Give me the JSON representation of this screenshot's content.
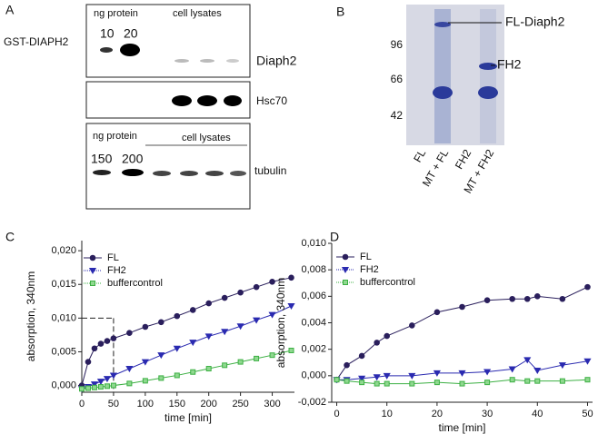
{
  "panel_labels": [
    "A",
    "B",
    "C",
    "D"
  ],
  "blot": {
    "row_label": "GST-DIAPH2",
    "box1": {
      "header": [
        "ng protein",
        "cell lysates"
      ],
      "amounts": [
        "10",
        "20"
      ],
      "label": "Diaph2"
    },
    "box2": {
      "label": "Hsc70"
    },
    "box3": {
      "header": [
        "ng protein",
        "cell lysates"
      ],
      "amounts": [
        "150",
        "200"
      ],
      "label": "tubulin"
    }
  },
  "gel": {
    "mw": [
      "96",
      "66",
      "42"
    ],
    "band_labels": [
      "FL-Diaph2",
      "FH2"
    ],
    "lanes": [
      "FL",
      "MT + FL",
      "FH2",
      "MT + FH2"
    ]
  },
  "chart_data": [
    {
      "type": "line",
      "x_label": "time [min]",
      "y_label": "absorption, 340nm",
      "x": [
        0,
        10,
        20,
        30,
        40,
        50,
        75,
        100,
        125,
        150,
        175,
        200,
        225,
        250,
        275,
        300,
        330
      ],
      "series": [
        {
          "name": "FL",
          "color": "#2a1f5c",
          "marker": "circle",
          "values": [
            0,
            0.0035,
            0.0055,
            0.0062,
            0.0066,
            0.007,
            0.0078,
            0.0087,
            0.0094,
            0.0103,
            0.0112,
            0.0122,
            0.013,
            0.0138,
            0.0146,
            0.0154,
            0.016
          ]
        },
        {
          "name": "FH2",
          "color": "#2a2ab0",
          "marker": "triangle",
          "values": [
            -0.0005,
            -0.0002,
            0.0002,
            0.0006,
            0.001,
            0.0015,
            0.0025,
            0.0035,
            0.0045,
            0.0055,
            0.0064,
            0.0073,
            0.008,
            0.0088,
            0.0097,
            0.0105,
            0.0118
          ]
        },
        {
          "name": "buffercontrol",
          "color": "#3cb043",
          "marker": "square",
          "values": [
            -0.0005,
            -0.0004,
            -0.0003,
            -0.0002,
            -0.0001,
            0,
            0.0003,
            0.0007,
            0.0011,
            0.0015,
            0.002,
            0.0025,
            0.003,
            0.0035,
            0.004,
            0.0045,
            0.0052
          ]
        }
      ],
      "xlim": [
        0,
        335
      ],
      "xticks": [
        0,
        50,
        100,
        150,
        200,
        250,
        300
      ],
      "ylim": [
        -0.001,
        0.0215
      ],
      "yticks": [
        {
          "value": 0,
          "label": "0,000"
        },
        {
          "value": 0.005,
          "label": "0,005"
        },
        {
          "value": 0.01,
          "label": "0,010"
        },
        {
          "value": 0.015,
          "label": "0,015"
        },
        {
          "value": 0.02,
          "label": "0,020"
        }
      ],
      "guide": {
        "x": 50,
        "y": 0.01
      }
    },
    {
      "type": "line",
      "x_label": "time [min]",
      "y_label": "absorption, 340nm",
      "x": [
        0,
        2,
        5,
        8,
        10,
        15,
        20,
        25,
        30,
        35,
        38,
        40,
        45,
        50
      ],
      "series": [
        {
          "name": "FL",
          "color": "#2a1f5c",
          "marker": "circle",
          "values": [
            -0.0003,
            0.0008,
            0.0015,
            0.0025,
            0.003,
            0.0038,
            0.0048,
            0.0052,
            0.0057,
            0.0058,
            0.0058,
            0.006,
            0.0058,
            0.0067
          ]
        },
        {
          "name": "FH2",
          "color": "#2a2ab0",
          "marker": "triangle",
          "values": [
            -0.0003,
            -0.0003,
            -0.0002,
            -0.0001,
            0,
            0,
            0.0002,
            0.0002,
            0.0003,
            0.0005,
            0.0012,
            0.0004,
            0.0008,
            0.0011
          ]
        },
        {
          "name": "buffercontrol",
          "color": "#3cb043",
          "marker": "square",
          "values": [
            -0.0003,
            -0.0004,
            -0.0005,
            -0.0006,
            -0.0006,
            -0.0006,
            -0.0005,
            -0.0006,
            -0.0005,
            -0.0003,
            -0.0004,
            -0.0004,
            -0.0004,
            -0.0003
          ]
        }
      ],
      "xlim": [
        -1,
        51
      ],
      "xticks": [
        0,
        10,
        20,
        30,
        40,
        50
      ],
      "ylim": [
        -0.002,
        0.01
      ],
      "yticks": [
        {
          "value": -0.002,
          "label": "-0,002"
        },
        {
          "value": 0,
          "label": "0,000"
        },
        {
          "value": 0.002,
          "label": "0,002"
        },
        {
          "value": 0.004,
          "label": "0,004"
        },
        {
          "value": 0.006,
          "label": "0,006"
        },
        {
          "value": 0.008,
          "label": "0,008"
        },
        {
          "value": 0.01,
          "label": "0,010"
        }
      ]
    }
  ]
}
